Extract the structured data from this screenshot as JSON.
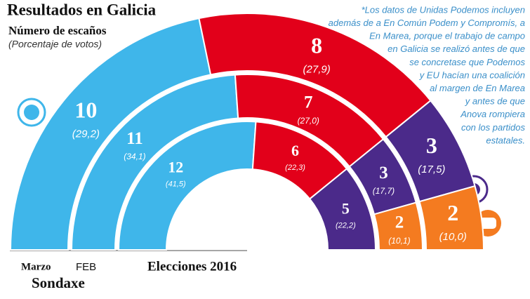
{
  "chart_data": {
    "type": "parliament",
    "title": "Resultados en Galicia",
    "subtitle": "Número de escaños",
    "note": "(Porcentaje de votos)",
    "pollster": "Sondaxe",
    "annotation": [
      "*Los datos de Unidas Podemos incluyen",
      "además de a En Común Podem y Compromís, a",
      "En Marea, porque el trabajo de campo",
      "en Galicia se realizó antes de que",
      "se concretase que Podemos",
      "y EU hacían una coalición",
      "al margen de En Marea",
      "y antes de que",
      "Anova rompiera",
      "con los partidos",
      "estatales."
    ],
    "rings": [
      {
        "label": "Marzo",
        "seats": [
          10,
          8,
          3,
          2
        ],
        "pct": [
          29.2,
          27.9,
          17.5,
          10.0
        ],
        "pct_labels": [
          "(29,2)",
          "(27,9)",
          "(17,5)",
          "(10,0)"
        ],
        "colors": [
          "#3fb6ea",
          "#e2001a",
          "#4b2a8a",
          "#f47b20"
        ]
      },
      {
        "label": "FEB",
        "seats": [
          11,
          7,
          3,
          2
        ],
        "pct": [
          34.1,
          27.0,
          17.7,
          10.1
        ],
        "pct_labels": [
          "(34,1)",
          "(27,0)",
          "(17,7)",
          "(10,1)"
        ],
        "colors": [
          "#3fb6ea",
          "#e2001a",
          "#4b2a8a",
          "#f47b20"
        ]
      },
      {
        "label": "Elecciones 2016",
        "seats": [
          12,
          6,
          5
        ],
        "pct": [
          41.5,
          22.3,
          22.2
        ],
        "pct_labels": [
          "(41,5)",
          "(22,3)",
          "(22,2)"
        ],
        "colors": [
          "#3fb6ea",
          "#e2001a",
          "#4b2a8a"
        ]
      }
    ]
  }
}
